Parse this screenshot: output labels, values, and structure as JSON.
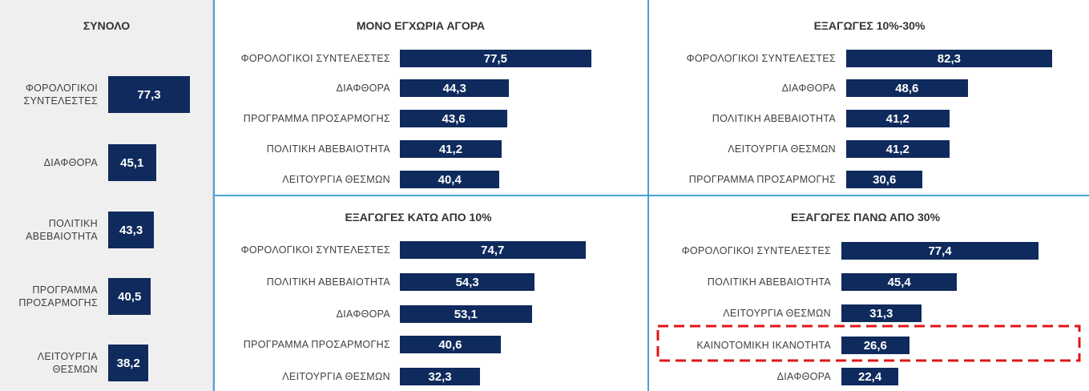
{
  "chart_data": [
    {
      "type": "bar",
      "orientation": "horizontal",
      "title": "ΣΥΝΟΛΟ",
      "color": "#0f2a5c",
      "xlim": [
        0,
        100
      ],
      "categories": [
        "ΦΟΡΟΛΟΓΙΚΟΙ ΣΥΝΤΕΛΕΣΤΕΣ",
        "ΔΙΑΦΘΟΡΑ",
        "ΠΟΛΙΤΙΚΗ ΑΒΕΒΑΙΟΤΗΤΑ",
        "ΠΡΟΓΡΑΜΜΑ ΠΡΟΣΑΡΜΟΓΗΣ",
        "ΛΕΙΤΟΥΡΓΙΑ ΘΕΣΜΩΝ"
      ],
      "values": [
        77.3,
        45.1,
        43.3,
        40.5,
        38.2
      ],
      "value_labels": [
        "77,3",
        "45,1",
        "43,3",
        "40,5",
        "38,2"
      ]
    },
    {
      "type": "bar",
      "orientation": "horizontal",
      "title": "ΜΟΝΟ ΕΓΧΩΡΙΑ ΑΓΟΡΑ",
      "color": "#0f2a5c",
      "xlim": [
        0,
        100
      ],
      "categories": [
        "ΦΟΡΟΛΟΓΙΚΟΙ ΣΥΝΤΕΛΕΣΤΕΣ",
        "ΔΙΑΦΘΟΡΑ",
        "ΠΡΟΓΡΑΜΜΑ ΠΡΟΣΑΡΜΟΓΗΣ",
        "ΠΟΛΙΤΙΚΗ ΑΒΕΒΑΙΟΤΗΤΑ",
        "ΛΕΙΤΟΥΡΓΙΑ ΘΕΣΜΩΝ"
      ],
      "values": [
        77.5,
        44.3,
        43.6,
        41.2,
        40.4
      ],
      "value_labels": [
        "77,5",
        "44,3",
        "43,6",
        "41,2",
        "40,4"
      ]
    },
    {
      "type": "bar",
      "orientation": "horizontal",
      "title": "ΕΞΑΓΩΓΕΣ 10%-30%",
      "color": "#0f2a5c",
      "xlim": [
        0,
        100
      ],
      "categories": [
        "ΦΟΡΟΛΟΓΙΚΟΙ ΣΥΝΤΕΛΕΣΤΕΣ",
        "ΔΙΑΦΘΟΡΑ",
        "ΠΟΛΙΤΙΚΗ ΑΒΕΒΑΙΟΤΗΤΑ",
        "ΛΕΙΤΟΥΡΓΙΑ ΘΕΣΜΩΝ",
        "ΠΡΟΓΡΑΜΜΑ ΠΡΟΣΑΡΜΟΓΗΣ"
      ],
      "values": [
        82.3,
        48.6,
        41.2,
        41.2,
        30.6
      ],
      "value_labels": [
        "82,3",
        "48,6",
        "41,2",
        "41,2",
        "30,6"
      ]
    },
    {
      "type": "bar",
      "orientation": "horizontal",
      "title": "ΕΞΑΓΩΓΕΣ ΚΑΤΩ ΑΠΟ 10%",
      "color": "#0f2a5c",
      "xlim": [
        0,
        100
      ],
      "categories": [
        "ΦΟΡΟΛΟΓΙΚΟΙ ΣΥΝΤΕΛΕΣΤΕΣ",
        "ΠΟΛΙΤΙΚΗ ΑΒΕΒΑΙΟΤΗΤΑ",
        "ΔΙΑΦΘΟΡΑ",
        "ΠΡΟΓΡΑΜΜΑ ΠΡΟΣΑΡΜΟΓΗΣ",
        "ΛΕΙΤΟΥΡΓΙΑ ΘΕΣΜΩΝ"
      ],
      "values": [
        74.7,
        54.3,
        53.1,
        40.6,
        32.3
      ],
      "value_labels": [
        "74,7",
        "54,3",
        "53,1",
        "40,6",
        "32,3"
      ]
    },
    {
      "type": "bar",
      "orientation": "horizontal",
      "title": "ΕΞΑΓΩΓΕΣ ΠΑΝΩ ΑΠΟ 30%",
      "color": "#0f2a5c",
      "xlim": [
        0,
        100
      ],
      "categories": [
        "ΦΟΡΟΛΟΓΙΚΟΙ ΣΥΝΤΕΛΕΣΤΕΣ",
        "ΠΟΛΙΤΙΚΗ ΑΒΕΒΑΙΟΤΗΤΑ",
        "ΛΕΙΤΟΥΡΓΙΑ ΘΕΣΜΩΝ",
        "ΚΑΙΝΟΤΟΜΙΚΗ ΙΚΑΝΟΤΗΤΑ",
        "ΔΙΑΦΘΟΡΑ"
      ],
      "values": [
        77.4,
        45.4,
        31.3,
        26.6,
        22.4
      ],
      "value_labels": [
        "77,4",
        "45,4",
        "31,3",
        "26,6",
        "22,4"
      ]
    }
  ]
}
